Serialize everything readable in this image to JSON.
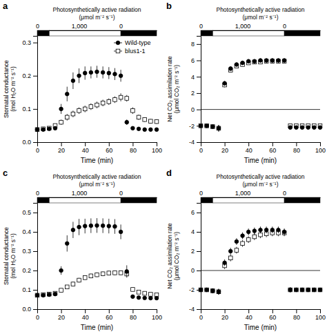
{
  "chart_data": [
    {
      "type": "scatter",
      "title": "Photosynthetically active radiation",
      "subtitle": "(μmol m⁻² s⁻¹)",
      "xlabel": "Time (min)",
      "ylabel": "Stomatal conductance\n(mol H₂O m⁻² s⁻¹)",
      "annotations": [
        {
          "text": "a"
        }
      ],
      "xlim": [
        0,
        100
      ],
      "xticks": [
        0,
        20,
        40,
        60,
        80,
        100
      ],
      "x2lim": [
        0,
        100
      ],
      "x2ticks": [
        0,
        {
          "value": 35,
          "label": "1,000"
        },
        {
          "value": 70,
          "label": "0"
        }
      ],
      "light_dark_bar": [
        {
          "from": 0,
          "to": 10,
          "color": "#000000"
        },
        {
          "from": 10,
          "to": 70,
          "color": "#ffffff"
        },
        {
          "from": 70,
          "to": 100,
          "color": "#000000"
        }
      ],
      "ylim": [
        0,
        0.32
      ],
      "yticks": [
        {
          "value": 0,
          "label": "0.0"
        },
        0.1,
        0.2,
        0.3
      ],
      "legend": "upper right",
      "series": [
        {
          "name": "Wild-type",
          "color": "#000000",
          "marker": "circle",
          "x": [
            0,
            5,
            10,
            15,
            20,
            25,
            30,
            35,
            40,
            45,
            50,
            55,
            60,
            65,
            70,
            75,
            80,
            85,
            90,
            95,
            100
          ],
          "values": [
            0.038,
            0.038,
            0.04,
            0.042,
            0.1,
            0.145,
            0.185,
            0.2,
            0.208,
            0.21,
            0.212,
            0.21,
            0.208,
            0.205,
            0.2,
            0.06,
            0.042,
            0.04,
            0.038,
            0.038,
            0.038
          ],
          "errors": [
            0.004,
            0.004,
            0.004,
            0.004,
            0.015,
            0.022,
            0.025,
            0.022,
            0.02,
            0.018,
            0.018,
            0.018,
            0.018,
            0.018,
            0.018,
            0.008,
            0.004,
            0.004,
            0.004,
            0.004,
            0.004
          ]
        },
        {
          "name": "blus1-1",
          "color": "#000000",
          "marker": "open-square",
          "x": [
            0,
            5,
            10,
            15,
            20,
            25,
            30,
            35,
            40,
            45,
            50,
            55,
            60,
            65,
            70,
            75,
            80,
            85,
            90,
            95,
            100
          ],
          "values": [
            0.038,
            0.04,
            0.042,
            0.05,
            0.06,
            0.075,
            0.085,
            0.095,
            0.1,
            0.107,
            0.112,
            0.118,
            0.122,
            0.128,
            0.135,
            0.132,
            0.095,
            0.075,
            0.068,
            0.063,
            0.062
          ],
          "errors": [
            0.004,
            0.004,
            0.005,
            0.006,
            0.008,
            0.01,
            0.01,
            0.01,
            0.01,
            0.01,
            0.01,
            0.01,
            0.01,
            0.01,
            0.012,
            0.01,
            0.01,
            0.008,
            0.007,
            0.007,
            0.007
          ]
        }
      ]
    },
    {
      "type": "scatter",
      "title": "Photosynthetically active radiation",
      "subtitle": "(μmol m⁻² s⁻¹)",
      "xlabel": "Time (min)",
      "ylabel": "Net CO₂ assimilation rate\n(μmol CO₂ m⁻² s⁻¹)",
      "annotations": [
        {
          "text": "b"
        }
      ],
      "xlim": [
        0,
        100
      ],
      "xticks": [
        0,
        20,
        40,
        60,
        80,
        100
      ],
      "x2lim": [
        0,
        100
      ],
      "x2ticks": [
        0,
        {
          "value": 35,
          "label": "1,000"
        },
        {
          "value": 70,
          "label": "0"
        }
      ],
      "light_dark_bar": [
        {
          "from": 0,
          "to": 10,
          "color": "#000000"
        },
        {
          "from": 10,
          "to": 70,
          "color": "#ffffff"
        },
        {
          "from": 70,
          "to": 100,
          "color": "#000000"
        }
      ],
      "ylim": [
        -4,
        9
      ],
      "yticks": [
        -4,
        -2,
        0,
        2,
        4,
        6,
        8
      ],
      "hline": 0,
      "series": [
        {
          "color": "#000000",
          "marker": "circle",
          "x": [
            0,
            5,
            10,
            15,
            20,
            25,
            30,
            35,
            40,
            45,
            50,
            55,
            60,
            65,
            70,
            75,
            80,
            85,
            90,
            95,
            100
          ],
          "values": [
            -2.0,
            -2.0,
            -2.1,
            -2.3,
            3.2,
            5.0,
            5.5,
            5.7,
            5.9,
            5.9,
            6.0,
            6.0,
            6.0,
            6.0,
            6.0,
            -2.2,
            -2.2,
            -2.2,
            -2.2,
            -2.2,
            -2.2
          ],
          "errors": [
            0.15,
            0.15,
            0.2,
            0.4,
            0.3,
            0.25,
            0.25,
            0.25,
            0.25,
            0.25,
            0.25,
            0.25,
            0.25,
            0.25,
            0.25,
            0.2,
            0.15,
            0.15,
            0.15,
            0.15,
            0.15
          ]
        },
        {
          "color": "#000000",
          "marker": "open-square",
          "x": [
            0,
            5,
            10,
            15,
            20,
            25,
            30,
            35,
            40,
            45,
            50,
            55,
            60,
            65,
            70,
            75,
            80,
            85,
            90,
            95,
            100
          ],
          "values": [
            -2.0,
            -2.0,
            -2.1,
            -2.3,
            3.0,
            4.8,
            5.3,
            5.5,
            5.7,
            5.8,
            5.8,
            5.9,
            5.9,
            5.9,
            5.9,
            -2.0,
            -2.0,
            -2.0,
            -2.0,
            -2.0,
            -2.0
          ],
          "errors": [
            0.15,
            0.15,
            0.2,
            0.4,
            0.3,
            0.25,
            0.25,
            0.25,
            0.25,
            0.25,
            0.25,
            0.25,
            0.25,
            0.25,
            0.25,
            0.2,
            0.15,
            0.15,
            0.15,
            0.15,
            0.15
          ]
        }
      ]
    },
    {
      "type": "scatter",
      "title": "Photosynthetically active radiation",
      "subtitle": "(μmol m⁻² s⁻¹)",
      "xlabel": "Time (min)",
      "ylabel": "Stomatal conductance\n(mol H₂O m⁻² s⁻¹)",
      "annotations": [
        {
          "text": "c"
        }
      ],
      "xlim": [
        0,
        100
      ],
      "xticks": [
        0,
        20,
        40,
        60,
        80,
        100
      ],
      "x2lim": [
        0,
        100
      ],
      "x2ticks": [
        0,
        {
          "value": 35,
          "label": "1,000"
        },
        {
          "value": 70,
          "label": "0"
        }
      ],
      "light_dark_bar": [
        {
          "from": 0,
          "to": 10,
          "color": "#000000"
        },
        {
          "from": 10,
          "to": 70,
          "color": "#ffffff"
        },
        {
          "from": 70,
          "to": 100,
          "color": "#000000"
        }
      ],
      "ylim": [
        0,
        0.55
      ],
      "yticks": [
        {
          "value": 0,
          "label": "0.0"
        },
        0.1,
        0.2,
        0.3,
        0.4,
        0.5
      ],
      "series": [
        {
          "color": "#000000",
          "marker": "circle",
          "x": [
            0,
            5,
            10,
            15,
            20,
            25,
            30,
            35,
            40,
            45,
            50,
            55,
            60,
            65,
            70,
            75,
            80,
            85,
            90,
            95,
            100
          ],
          "values": [
            0.072,
            0.072,
            0.075,
            0.078,
            0.2,
            0.34,
            0.41,
            0.425,
            0.43,
            0.432,
            0.433,
            0.432,
            0.43,
            0.428,
            0.4,
            0.195,
            0.065,
            0.06,
            0.058,
            0.057,
            0.057
          ],
          "errors": [
            0.008,
            0.008,
            0.008,
            0.008,
            0.022,
            0.042,
            0.042,
            0.042,
            0.038,
            0.038,
            0.038,
            0.038,
            0.038,
            0.038,
            0.038,
            0.032,
            0.01,
            0.008,
            0.008,
            0.008,
            0.008
          ]
        },
        {
          "color": "#000000",
          "marker": "open-square",
          "x": [
            0,
            5,
            10,
            15,
            20,
            25,
            30,
            35,
            40,
            45,
            50,
            55,
            60,
            65,
            70,
            75,
            80,
            85,
            90,
            95,
            100
          ],
          "values": [
            0.072,
            0.075,
            0.078,
            0.082,
            0.098,
            0.115,
            0.13,
            0.15,
            0.163,
            0.172,
            0.178,
            0.183,
            0.187,
            0.188,
            0.188,
            0.182,
            0.102,
            0.088,
            0.082,
            0.077,
            0.074
          ],
          "errors": [
            0.008,
            0.008,
            0.008,
            0.008,
            0.01,
            0.01,
            0.012,
            0.012,
            0.012,
            0.012,
            0.012,
            0.012,
            0.012,
            0.012,
            0.012,
            0.012,
            0.01,
            0.008,
            0.008,
            0.008,
            0.008
          ]
        }
      ]
    },
    {
      "type": "scatter",
      "title": "Photosynthetically active radiation",
      "subtitle": "(μmol m⁻² s⁻¹)",
      "xlabel": "Time (min)",
      "ylabel": "Net CO₂ assimilation rate\n(μmol CO₂ m⁻² s⁻¹)",
      "annotations": [
        {
          "text": "d"
        }
      ],
      "xlim": [
        0,
        100
      ],
      "xticks": [
        0,
        20,
        40,
        60,
        80,
        100
      ],
      "x2lim": [
        0,
        100
      ],
      "x2ticks": [
        0,
        {
          "value": 35,
          "label": "1,000"
        },
        {
          "value": 70,
          "label": "0"
        }
      ],
      "light_dark_bar": [
        {
          "from": 0,
          "to": 10,
          "color": "#000000"
        },
        {
          "from": 10,
          "to": 70,
          "color": "#ffffff"
        },
        {
          "from": 70,
          "to": 100,
          "color": "#000000"
        }
      ],
      "ylim": [
        -4,
        7
      ],
      "yticks": [
        -4,
        -2,
        0,
        2,
        4,
        6
      ],
      "hline": 0,
      "series": [
        {
          "color": "#000000",
          "marker": "circle",
          "x": [
            0,
            5,
            10,
            15,
            20,
            25,
            30,
            35,
            40,
            45,
            50,
            55,
            60,
            65,
            70,
            75,
            80,
            85,
            90,
            95,
            100
          ],
          "values": [
            -2.0,
            -2.0,
            -2.1,
            -2.2,
            0.8,
            2.0,
            3.0,
            3.6,
            4.0,
            4.1,
            4.2,
            4.2,
            4.2,
            4.2,
            4.0,
            -2.0,
            -2.0,
            -2.0,
            -2.0,
            -2.0,
            -2.0
          ],
          "errors": [
            0.2,
            0.2,
            0.25,
            0.3,
            0.35,
            0.35,
            0.35,
            0.35,
            0.35,
            0.35,
            0.35,
            0.35,
            0.35,
            0.35,
            0.35,
            0.25,
            0.2,
            0.2,
            0.2,
            0.2,
            0.2
          ]
        },
        {
          "color": "#000000",
          "marker": "open-square",
          "x": [
            0,
            5,
            10,
            15,
            20,
            25,
            30,
            35,
            40,
            45,
            50,
            55,
            60,
            65,
            70,
            75,
            80,
            85,
            90,
            95,
            100
          ],
          "values": [
            -2.0,
            -2.0,
            -2.1,
            -2.2,
            0.5,
            1.3,
            2.1,
            2.8,
            3.2,
            3.5,
            3.7,
            3.8,
            3.9,
            3.9,
            3.9,
            -2.0,
            -2.0,
            -2.0,
            -2.0,
            -2.0,
            -2.0
          ],
          "errors": [
            0.2,
            0.2,
            0.25,
            0.3,
            0.35,
            0.35,
            0.35,
            0.35,
            0.35,
            0.35,
            0.35,
            0.35,
            0.35,
            0.35,
            0.35,
            0.25,
            0.2,
            0.2,
            0.2,
            0.2,
            0.2
          ]
        }
      ]
    }
  ]
}
